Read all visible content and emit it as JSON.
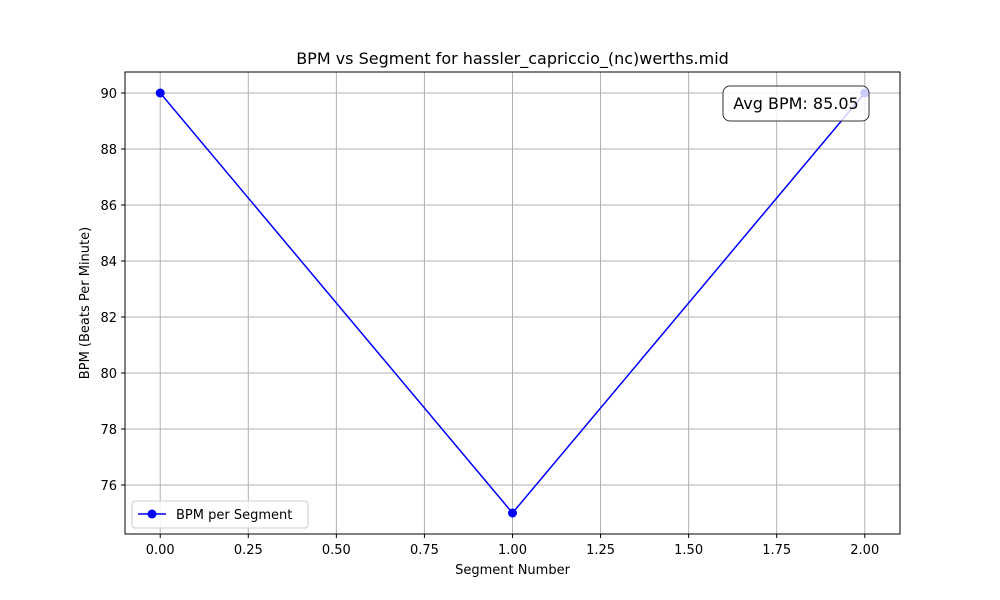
{
  "chart_data": {
    "type": "line",
    "title": "BPM vs Segment for hassler_capriccio_(nc)werths.mid",
    "xlabel": "Segment Number",
    "ylabel": "BPM (Beats Per Minute)",
    "xlim": [
      -0.1,
      2.1
    ],
    "ylim": [
      74.25,
      90.75
    ],
    "xticks": [
      0.0,
      0.25,
      0.5,
      0.75,
      1.0,
      1.25,
      1.5,
      1.75,
      2.0
    ],
    "xtick_labels": [
      "0.00",
      "0.25",
      "0.50",
      "0.75",
      "1.00",
      "1.25",
      "1.50",
      "1.75",
      "2.00"
    ],
    "yticks": [
      76,
      78,
      80,
      82,
      84,
      86,
      88,
      90
    ],
    "ytick_labels": [
      "76",
      "78",
      "80",
      "82",
      "84",
      "86",
      "88",
      "90"
    ],
    "grid": true,
    "legend_position": "lower-left",
    "series": [
      {
        "name": "BPM per Segment",
        "color": "#0000ff",
        "marker": "circle",
        "x": [
          0,
          1,
          2
        ],
        "y": [
          90,
          75,
          90
        ]
      }
    ],
    "annotation": {
      "text": "Avg BPM: 85.05",
      "position": "top-right"
    }
  }
}
